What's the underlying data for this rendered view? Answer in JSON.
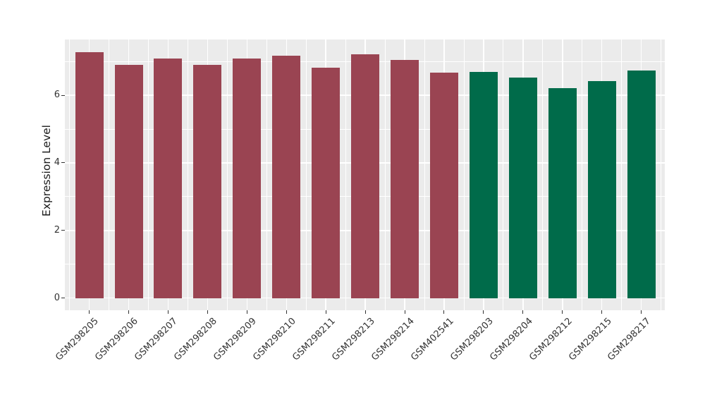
{
  "chart_data": {
    "type": "bar",
    "title": "",
    "xlabel": "",
    "ylabel": "Expression Level",
    "categories": [
      "GSM298205",
      "GSM298206",
      "GSM298207",
      "GSM298208",
      "GSM298209",
      "GSM298210",
      "GSM298211",
      "GSM298213",
      "GSM298214",
      "GSM402541",
      "GSM298203",
      "GSM298204",
      "GSM298212",
      "GSM298215",
      "GSM298217"
    ],
    "values": [
      7.28,
      6.9,
      7.08,
      6.9,
      7.08,
      7.17,
      6.81,
      7.22,
      7.05,
      6.66,
      6.69,
      6.52,
      6.2,
      6.42,
      6.72
    ],
    "bar_groups": [
      "group1",
      "group1",
      "group1",
      "group1",
      "group1",
      "group1",
      "group1",
      "group1",
      "group1",
      "group1",
      "group2",
      "group2",
      "group2",
      "group2",
      "group2"
    ],
    "group_colors": {
      "group1": "#9A4452",
      "group2": "#006B4A"
    },
    "yticks": [
      0,
      2,
      4,
      6
    ],
    "yticks_minor": [
      1,
      3,
      5,
      7
    ],
    "ylim": [
      0,
      7.64
    ],
    "grid": "on",
    "legend": "none",
    "panel_bg": "#EBEBEB",
    "grid_color": "#FFFFFF",
    "axis_text_color": "#333333"
  }
}
